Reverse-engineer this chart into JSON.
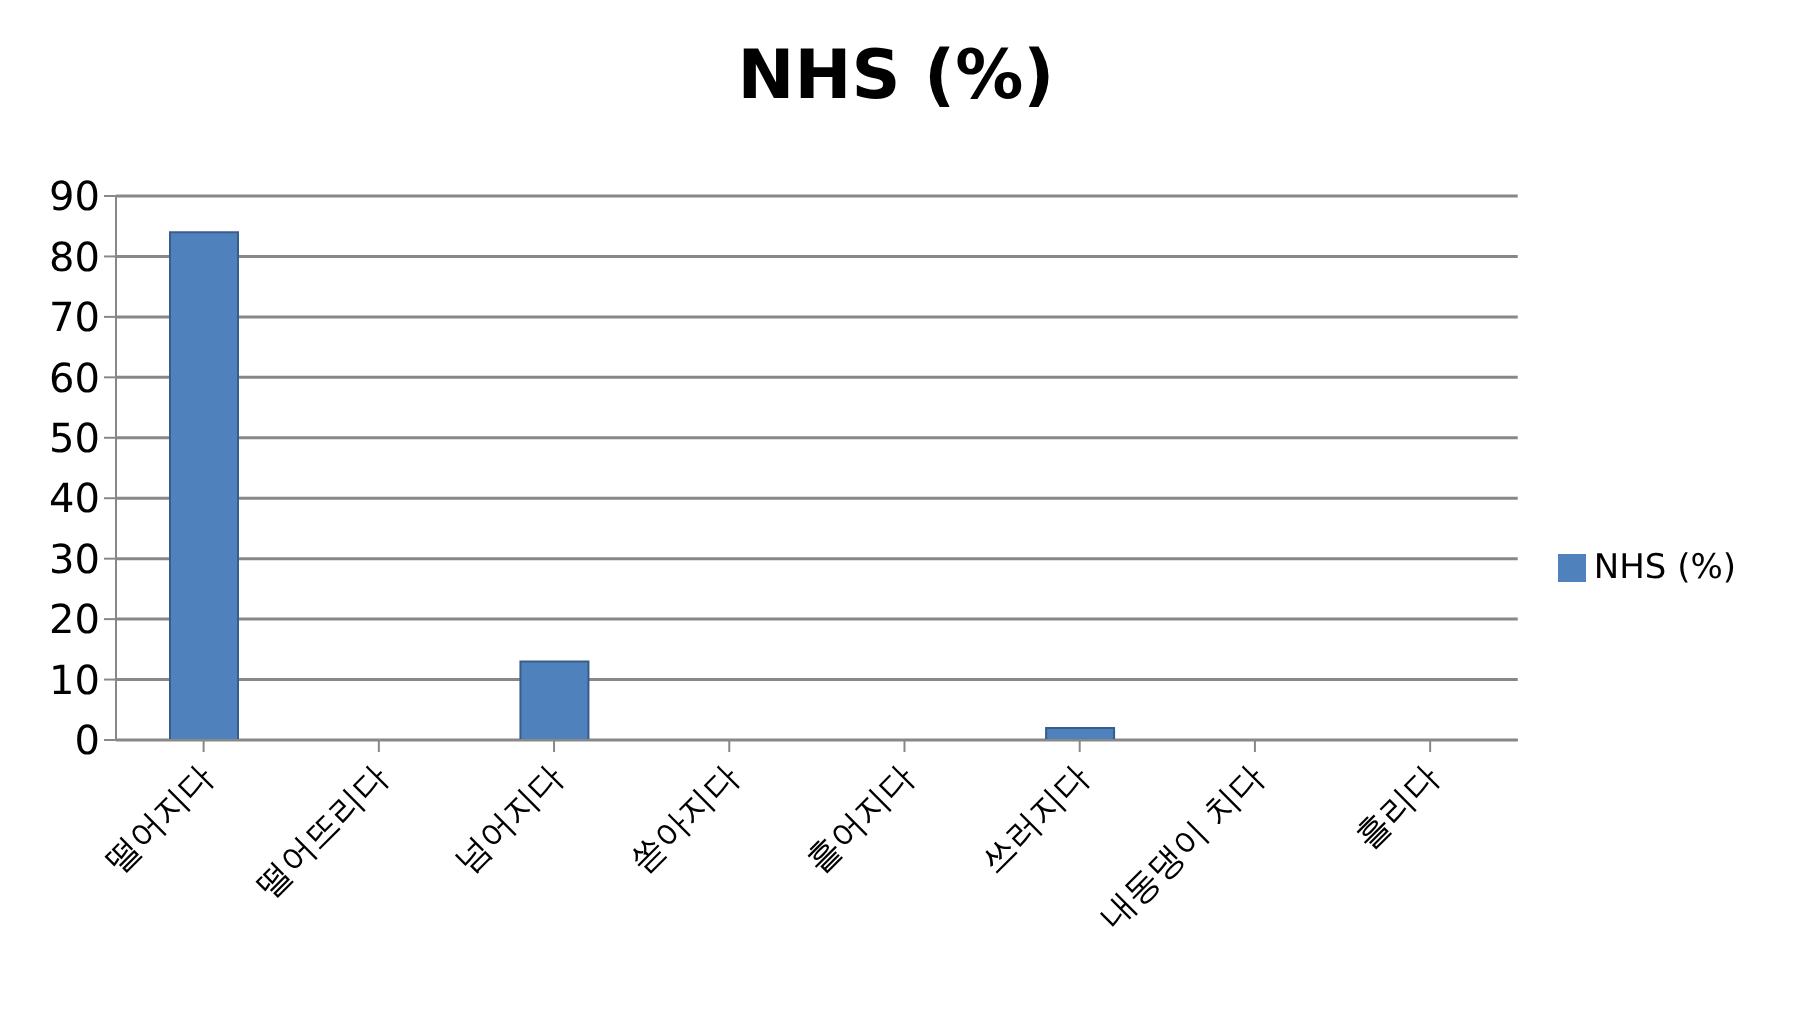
{
  "chart_data": {
    "type": "bar",
    "title": "NHS (%)",
    "categories": [
      "떨어지다",
      "떨어뜨리다",
      "넘어지다",
      "쏟아지다",
      "흩어지다",
      "쓰러지다",
      "내동댕이 치다",
      "흘리다"
    ],
    "series": [
      {
        "name": "NHS (%)",
        "color": "#4f81bd",
        "values": [
          84,
          0,
          13,
          0,
          0,
          2,
          0,
          0
        ]
      }
    ],
    "ylim": [
      0,
      90
    ],
    "yticks": [
      0,
      10,
      20,
      30,
      40,
      50,
      60,
      70,
      80,
      90
    ],
    "grid": "y",
    "legend": "right"
  }
}
